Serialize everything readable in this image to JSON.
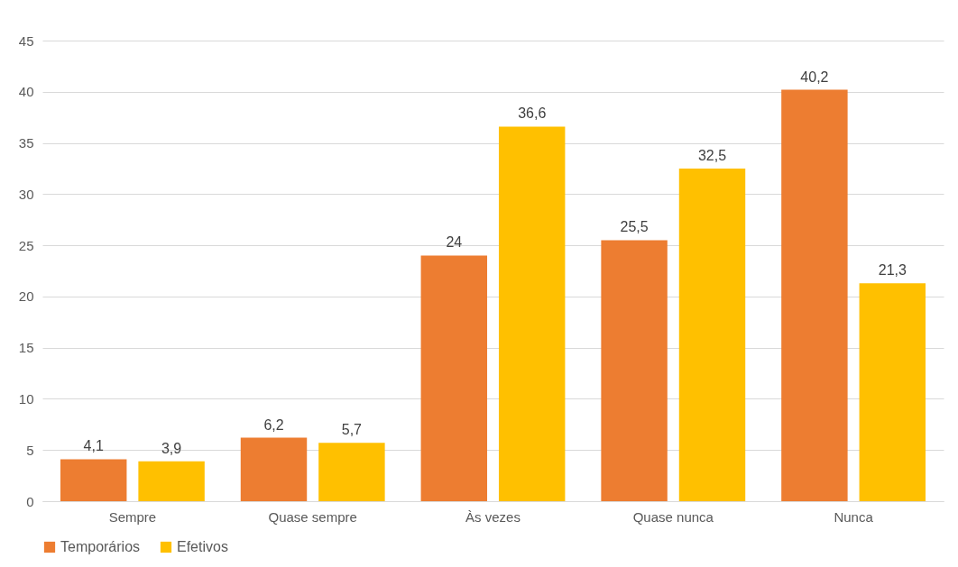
{
  "chart_data": {
    "type": "bar",
    "categories": [
      "Sempre",
      "Quase sempre",
      "Às vezes",
      "Quase nunca",
      "Nunca"
    ],
    "series": [
      {
        "name": "Temporários",
        "color": "#ed7d31",
        "values": [
          4.1,
          6.2,
          24,
          25.5,
          40.2
        ],
        "value_labels": [
          "4,1",
          "6,2",
          "24",
          "25,5",
          "40,2"
        ]
      },
      {
        "name": "Efetivos",
        "color": "#ffc000",
        "values": [
          3.9,
          5.7,
          36.6,
          32.5,
          21.3
        ],
        "value_labels": [
          "3,9",
          "5,7",
          "36,6",
          "32,5",
          "21,3"
        ]
      }
    ],
    "ylim": [
      0,
      45
    ],
    "yticks": [
      0,
      5,
      10,
      15,
      20,
      25,
      30,
      35,
      40,
      45
    ],
    "grid": "y",
    "legend": "bottom"
  }
}
